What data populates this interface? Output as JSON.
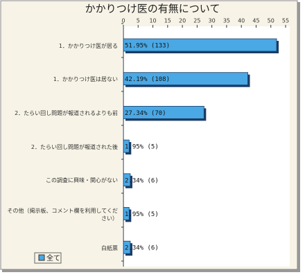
{
  "chart_data": {
    "type": "bar",
    "orientation": "horizontal",
    "title": "かかりつけ医の有無について",
    "categories": [
      "1．かかりつけ医が居る",
      "1．かかりつけ医は居ない",
      "2．たらい回し問題が報道されるよりも前",
      "2．たらい回し問題が報道された後",
      "この調査に興味・関心がない",
      "その他（掲示板、コメント欄を利用してください）",
      "白紙票"
    ],
    "series": [
      {
        "name": "全て",
        "color": "#4aa8e4",
        "values": [
          51.95,
          42.19,
          27.34,
          1.95,
          2.34,
          1.95,
          2.34
        ],
        "value_labels": [
          "51.95% (133)",
          "42.19% (108)",
          "27.34% (70)",
          "1.95% (5)",
          "2.34% (6)",
          "1.95% (5)",
          "2.34% (6)"
        ]
      }
    ],
    "xlim": [
      0,
      55
    ],
    "xticks": [
      0,
      5,
      10,
      15,
      20,
      25,
      30,
      35,
      40,
      45,
      50,
      55
    ]
  }
}
